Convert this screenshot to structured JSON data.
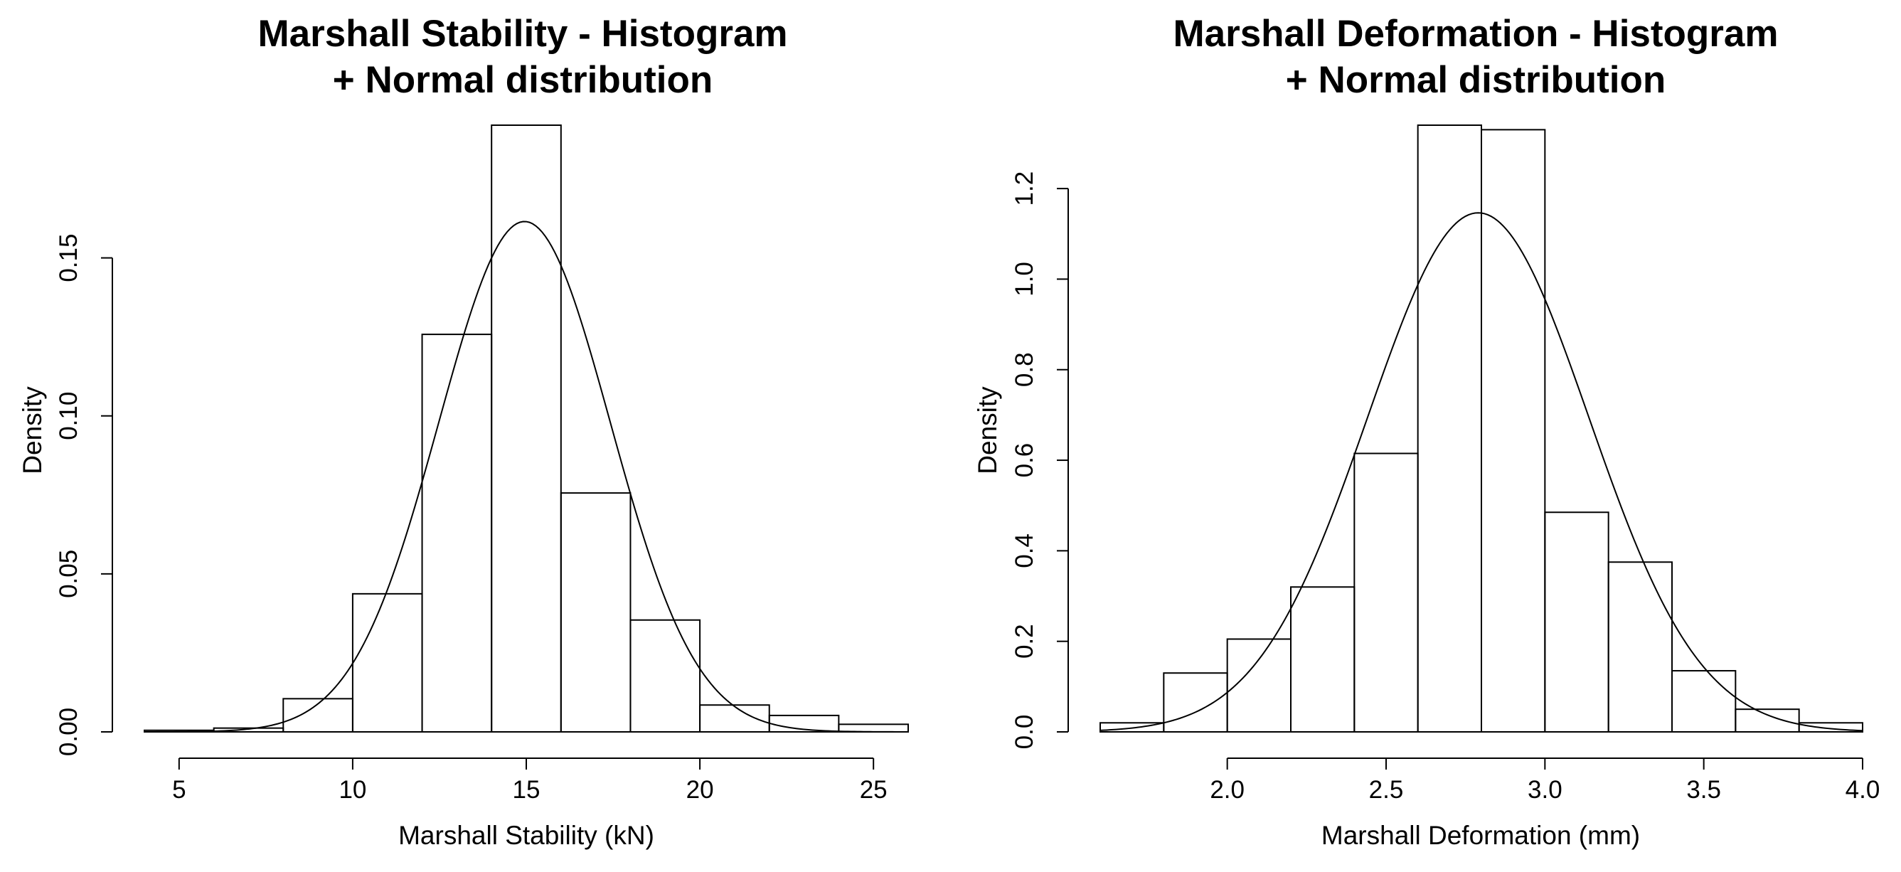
{
  "chart_data": [
    {
      "type": "bar",
      "title_lines": [
        "Marshall Stability - Histogram",
        "+ Normal distribution"
      ],
      "xlabel": "Marshall Stability (kN)",
      "ylabel": "Density",
      "bins": [
        {
          "x0": 4,
          "x1": 6,
          "density": 0.0005
        },
        {
          "x0": 6,
          "x1": 8,
          "density": 0.0012
        },
        {
          "x0": 8,
          "x1": 10,
          "density": 0.0105
        },
        {
          "x0": 10,
          "x1": 12,
          "density": 0.0437
        },
        {
          "x0": 12,
          "x1": 14,
          "density": 0.1258
        },
        {
          "x0": 14,
          "x1": 16,
          "density": 0.192
        },
        {
          "x0": 16,
          "x1": 18,
          "density": 0.0756
        },
        {
          "x0": 18,
          "x1": 20,
          "density": 0.0354
        },
        {
          "x0": 20,
          "x1": 22,
          "density": 0.0085
        },
        {
          "x0": 22,
          "x1": 24,
          "density": 0.0052
        },
        {
          "x0": 24,
          "x1": 26,
          "density": 0.0024
        }
      ],
      "normal_curve": {
        "mean": 14.95,
        "sd": 2.47
      },
      "xlim": [
        4,
        26
      ],
      "ylim": [
        0,
        0.192
      ],
      "xticks": [
        {
          "value": 5,
          "label": "5"
        },
        {
          "value": 10,
          "label": "10"
        },
        {
          "value": 15,
          "label": "15"
        },
        {
          "value": 20,
          "label": "20"
        },
        {
          "value": 25,
          "label": "25"
        }
      ],
      "yticks": [
        {
          "value": 0,
          "label": "0.00"
        },
        {
          "value": 0.05,
          "label": "0.05"
        },
        {
          "value": 0.1,
          "label": "0.10"
        },
        {
          "value": 0.15,
          "label": "0.15"
        }
      ],
      "grid": false
    },
    {
      "type": "bar",
      "title_lines": [
        "Marshall Deformation - Histogram",
        "+ Normal distribution"
      ],
      "xlabel": "Marshall Deformation (mm)",
      "ylabel": "Density",
      "bins": [
        {
          "x0": 1.6,
          "x1": 1.8,
          "density": 0.02
        },
        {
          "x0": 1.8,
          "x1": 2.0,
          "density": 0.13
        },
        {
          "x0": 2.0,
          "x1": 2.2,
          "density": 0.205
        },
        {
          "x0": 2.2,
          "x1": 2.4,
          "density": 0.32
        },
        {
          "x0": 2.4,
          "x1": 2.6,
          "density": 0.615
        },
        {
          "x0": 2.6,
          "x1": 2.8,
          "density": 1.34
        },
        {
          "x0": 2.8,
          "x1": 3.0,
          "density": 1.33
        },
        {
          "x0": 3.0,
          "x1": 3.2,
          "density": 0.485
        },
        {
          "x0": 3.2,
          "x1": 3.4,
          "density": 0.375
        },
        {
          "x0": 3.4,
          "x1": 3.6,
          "density": 0.135
        },
        {
          "x0": 3.6,
          "x1": 3.8,
          "density": 0.05
        },
        {
          "x0": 3.8,
          "x1": 4.0,
          "density": 0.02
        }
      ],
      "normal_curve": {
        "mean": 2.79,
        "sd": 0.348
      },
      "xlim": [
        1.6,
        4.0
      ],
      "ylim": [
        0,
        1.34
      ],
      "xticks": [
        {
          "value": 2.0,
          "label": "2.0"
        },
        {
          "value": 2.5,
          "label": "2.5"
        },
        {
          "value": 3.0,
          "label": "3.0"
        },
        {
          "value": 3.5,
          "label": "3.5"
        },
        {
          "value": 4.0,
          "label": "4.0"
        }
      ],
      "yticks": [
        {
          "value": 0,
          "label": "0.0"
        },
        {
          "value": 0.2,
          "label": "0.2"
        },
        {
          "value": 0.4,
          "label": "0.4"
        },
        {
          "value": 0.6,
          "label": "0.6"
        },
        {
          "value": 0.8,
          "label": "0.8"
        },
        {
          "value": 1.0,
          "label": "1.0"
        },
        {
          "value": 1.2,
          "label": "1.2"
        }
      ],
      "grid": false
    }
  ]
}
